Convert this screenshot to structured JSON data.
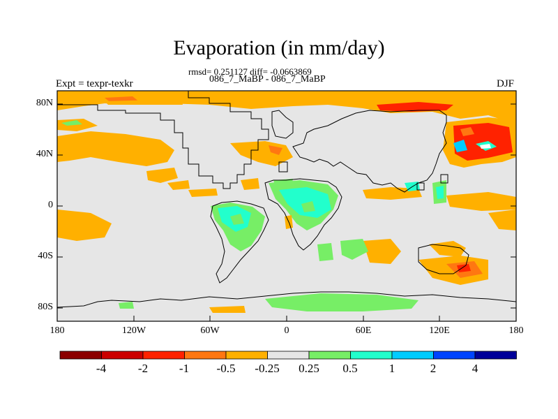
{
  "header": {
    "title": "Evaporation (in mm/day)",
    "stats": "rmsd= 0.251127 diff= -0.0663869",
    "subtitle": "086_7_MaBP - 086_7_MaBP",
    "experiment": "Expt = texpr-texkr",
    "season": "DJF"
  },
  "axes": {
    "y_ticks": [
      "80N",
      "40N",
      "0",
      "40S",
      "80S"
    ],
    "x_ticks": [
      "180",
      "120W",
      "60W",
      "0",
      "60E",
      "120E",
      "180"
    ]
  },
  "colorbar": {
    "labels": [
      "-4",
      "-2",
      "-1",
      "-0.5",
      "-0.25",
      "0.25",
      "0.5",
      "1",
      "2",
      "4"
    ],
    "colors": [
      "#8b0000",
      "#cc0000",
      "#ff2200",
      "#ff7711",
      "#ffb000",
      "#e6e6e6",
      "#77ee66",
      "#22ffcc",
      "#00ccff",
      "#0044ff",
      "#000099"
    ]
  },
  "field_colors": {
    "land_border": "#000000",
    "neutral": "#e6e6e6"
  }
}
